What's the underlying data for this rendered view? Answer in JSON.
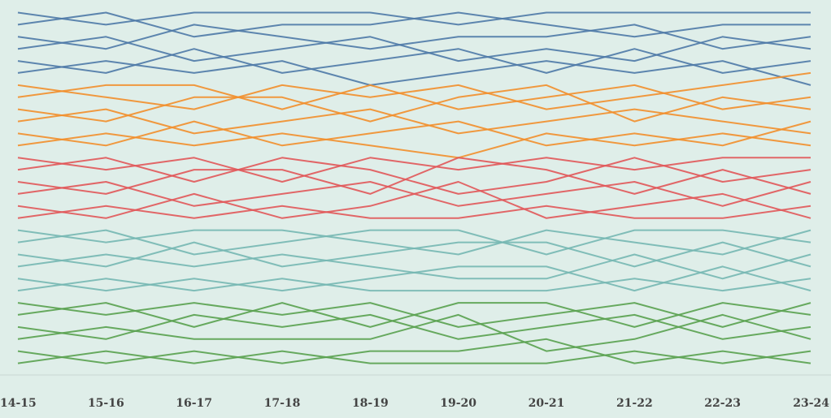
{
  "chart_data": {
    "type": "line",
    "categories": [
      "14-15",
      "15-16",
      "16-17",
      "17-18",
      "18-19",
      "19-20",
      "20-21",
      "21-22",
      "22-23",
      "23-24"
    ],
    "ylim": [
      30.5,
      0.5
    ],
    "series": [
      {
        "color": "#4e79a7",
        "values": [
          1,
          2,
          1,
          1,
          1,
          2,
          1,
          1,
          1,
          1
        ]
      },
      {
        "color": "#4e79a7",
        "values": [
          2,
          1,
          3,
          2,
          2,
          1,
          2,
          3,
          2,
          2
        ]
      },
      {
        "color": "#4e79a7",
        "values": [
          3,
          4,
          2,
          3,
          4,
          3,
          3,
          2,
          4,
          3
        ]
      },
      {
        "color": "#4e79a7",
        "values": [
          4,
          3,
          5,
          4,
          3,
          5,
          4,
          5,
          3,
          4
        ]
      },
      {
        "color": "#4e79a7",
        "values": [
          5,
          6,
          4,
          6,
          5,
          4,
          6,
          4,
          6,
          5
        ]
      },
      {
        "color": "#4e79a7",
        "values": [
          6,
          5,
          6,
          5,
          7,
          6,
          5,
          6,
          5,
          7
        ]
      },
      {
        "color": "#f28e2b",
        "values": [
          7,
          8,
          9,
          7,
          8,
          7,
          9,
          8,
          7,
          6
        ]
      },
      {
        "color": "#f28e2b",
        "values": [
          8,
          7,
          7,
          9,
          7,
          9,
          8,
          7,
          9,
          8
        ]
      },
      {
        "color": "#f28e2b",
        "values": [
          9,
          10,
          8,
          8,
          10,
          8,
          7,
          10,
          8,
          9
        ]
      },
      {
        "color": "#f28e2b",
        "values": [
          10,
          9,
          11,
          10,
          9,
          11,
          10,
          9,
          10,
          11
        ]
      },
      {
        "color": "#f28e2b",
        "values": [
          11,
          12,
          10,
          12,
          11,
          10,
          12,
          11,
          12,
          10
        ]
      },
      {
        "color": "#f28e2b",
        "values": [
          12,
          11,
          12,
          11,
          12,
          13,
          11,
          12,
          11,
          12
        ]
      },
      {
        "color": "#e15759",
        "values": [
          13,
          14,
          13,
          15,
          13,
          14,
          13,
          14,
          13,
          13
        ]
      },
      {
        "color": "#e15759",
        "values": [
          14,
          13,
          15,
          13,
          14,
          16,
          15,
          13,
          15,
          14
        ]
      },
      {
        "color": "#e15759",
        "values": [
          15,
          16,
          14,
          14,
          16,
          13,
          14,
          16,
          14,
          16
        ]
      },
      {
        "color": "#e15759",
        "values": [
          16,
          15,
          17,
          16,
          15,
          17,
          16,
          15,
          17,
          15
        ]
      },
      {
        "color": "#e15759",
        "values": [
          17,
          18,
          16,
          18,
          17,
          15,
          18,
          17,
          16,
          18
        ]
      },
      {
        "color": "#e15759",
        "values": [
          18,
          17,
          18,
          17,
          18,
          18,
          17,
          18,
          18,
          17
        ]
      },
      {
        "color": "#76b7b2",
        "values": [
          19,
          20,
          19,
          19,
          20,
          21,
          19,
          20,
          21,
          19
        ]
      },
      {
        "color": "#76b7b2",
        "values": [
          20,
          19,
          21,
          20,
          19,
          19,
          21,
          19,
          19,
          20
        ]
      },
      {
        "color": "#76b7b2",
        "values": [
          21,
          22,
          20,
          22,
          21,
          20,
          20,
          22,
          20,
          22
        ]
      },
      {
        "color": "#76b7b2",
        "values": [
          22,
          21,
          22,
          21,
          22,
          23,
          23,
          21,
          23,
          21
        ]
      },
      {
        "color": "#76b7b2",
        "values": [
          23,
          24,
          23,
          24,
          23,
          22,
          22,
          24,
          22,
          24
        ]
      },
      {
        "color": "#76b7b2",
        "values": [
          24,
          23,
          24,
          23,
          24,
          24,
          24,
          23,
          24,
          23
        ]
      },
      {
        "color": "#59a14f",
        "values": [
          25,
          26,
          25,
          26,
          25,
          27,
          26,
          25,
          27,
          25
        ]
      },
      {
        "color": "#59a14f",
        "values": [
          26,
          25,
          27,
          25,
          27,
          25,
          25,
          27,
          25,
          26
        ]
      },
      {
        "color": "#59a14f",
        "values": [
          27,
          28,
          26,
          27,
          26,
          28,
          27,
          26,
          28,
          27
        ]
      },
      {
        "color": "#59a14f",
        "values": [
          28,
          27,
          28,
          28,
          28,
          26,
          29,
          28,
          26,
          28
        ]
      },
      {
        "color": "#59a14f",
        "values": [
          29,
          30,
          29,
          30,
          29,
          29,
          28,
          30,
          29,
          30
        ]
      },
      {
        "color": "#59a14f",
        "values": [
          30,
          29,
          30,
          29,
          30,
          30,
          30,
          29,
          30,
          29
        ]
      }
    ]
  }
}
